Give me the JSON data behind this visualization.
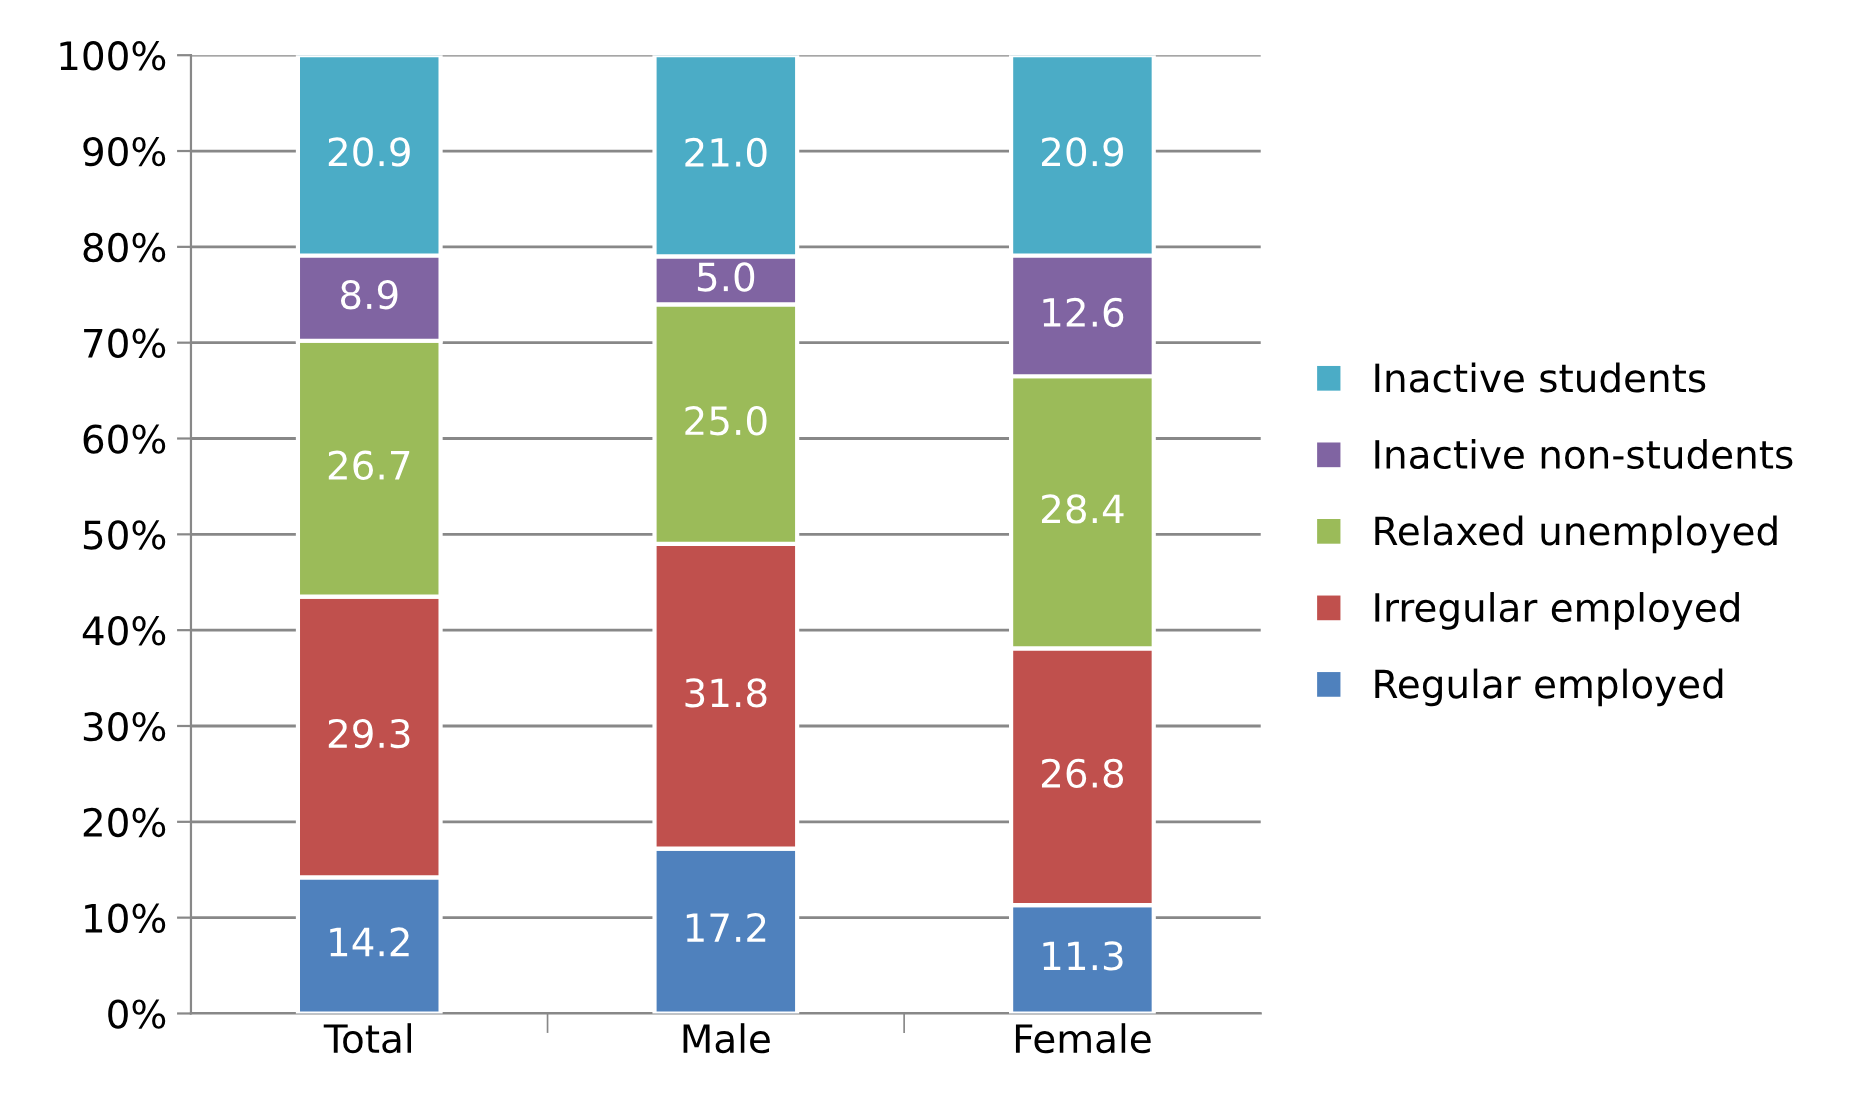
{
  "chart_data": {
    "type": "bar",
    "stacked": true,
    "categories": [
      "Total",
      "Male",
      "Female"
    ],
    "series": [
      {
        "name": "Regular employed",
        "color": "#4f81bd",
        "values": [
          14.2,
          17.2,
          11.3
        ],
        "value_labels": [
          "14.2",
          "17.2",
          "11.3"
        ]
      },
      {
        "name": "Irregular employed",
        "color": "#c0504d",
        "values": [
          29.3,
          31.8,
          26.8
        ],
        "value_labels": [
          "29.3",
          "31.8",
          "26.8"
        ]
      },
      {
        "name": "Relaxed unemployed",
        "color": "#9bbb59",
        "values": [
          26.7,
          25.0,
          28.4
        ],
        "value_labels": [
          "26.7",
          "25.0",
          "28.4"
        ]
      },
      {
        "name": "Inactive non-students",
        "color": "#8064a2",
        "values": [
          8.9,
          5.0,
          12.6
        ],
        "value_labels": [
          "8.9",
          "5.0",
          "12.6"
        ]
      },
      {
        "name": "Inactive students",
        "color": "#4bacc6",
        "values": [
          20.9,
          21.0,
          20.9
        ],
        "value_labels": [
          "20.9",
          "21.0",
          "20.9"
        ]
      }
    ],
    "ylim": [
      0,
      100
    ],
    "yticks": [
      {
        "value": 0,
        "label": "0%"
      },
      {
        "value": 10,
        "label": "10%"
      },
      {
        "value": 20,
        "label": "20%"
      },
      {
        "value": 30,
        "label": "30%"
      },
      {
        "value": 40,
        "label": "40%"
      },
      {
        "value": 50,
        "label": "50%"
      },
      {
        "value": 60,
        "label": "60%"
      },
      {
        "value": 70,
        "label": "70%"
      },
      {
        "value": 80,
        "label": "80%"
      },
      {
        "value": 90,
        "label": "90%"
      },
      {
        "value": 100,
        "label": "100%"
      }
    ],
    "grid": "y",
    "legend": "right"
  }
}
